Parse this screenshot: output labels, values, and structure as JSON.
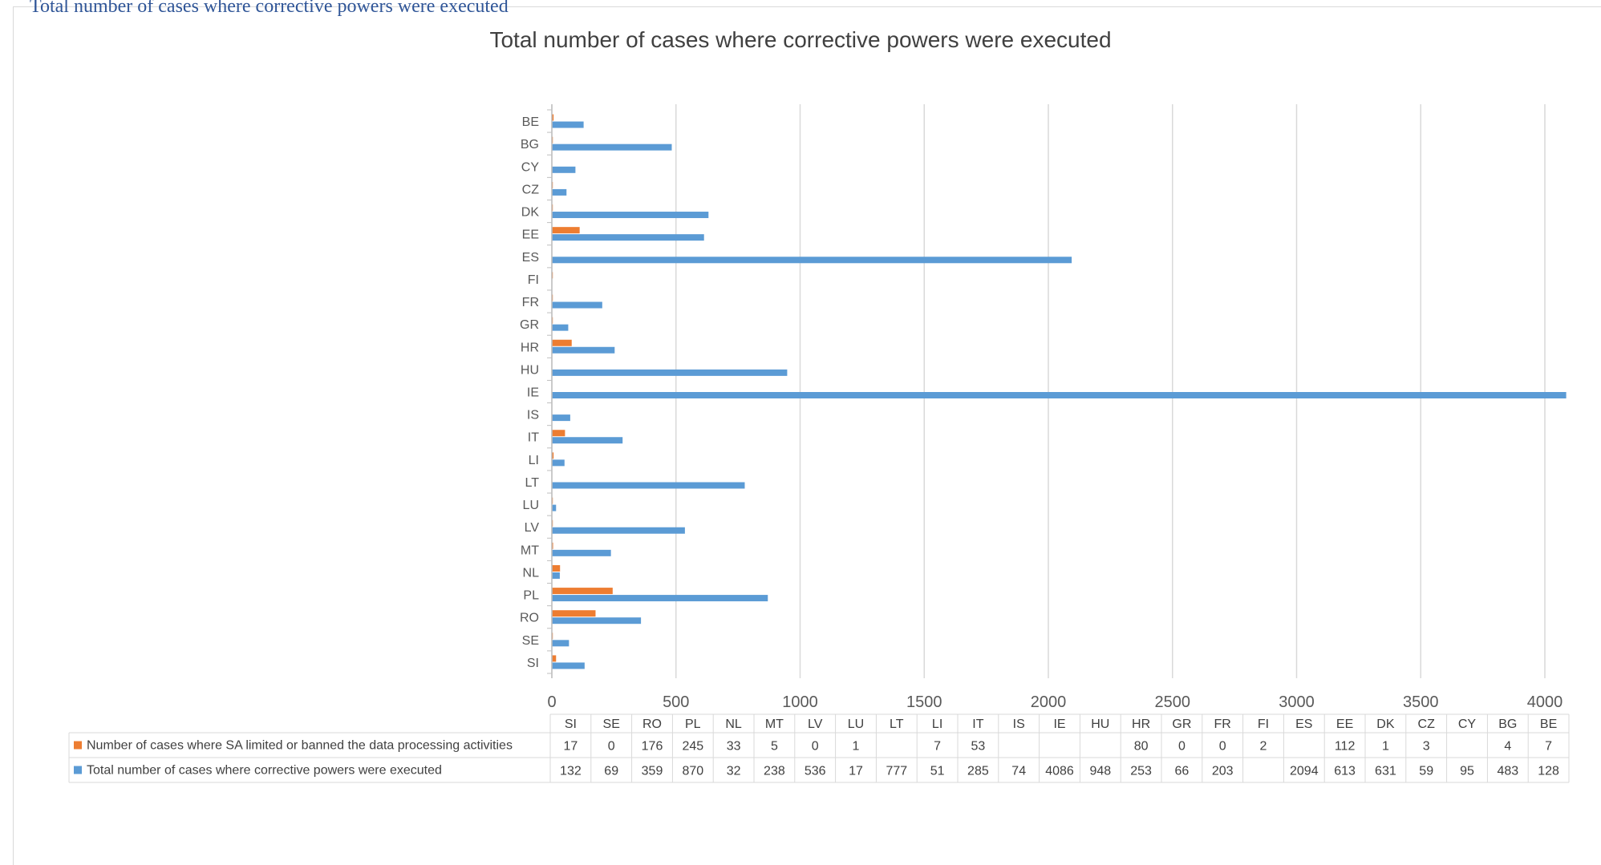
{
  "document": {
    "top_caption": "Total number of cases where corrective powers were executed"
  },
  "chart_data": {
    "type": "bar",
    "orientation": "horizontal",
    "title": "Total number of cases where corrective powers were executed",
    "categories": [
      "BE",
      "BG",
      "CY",
      "CZ",
      "DK",
      "EE",
      "ES",
      "FI",
      "FR",
      "GR",
      "HR",
      "HU",
      "IE",
      "IS",
      "IT",
      "LI",
      "LT",
      "LU",
      "LV",
      "MT",
      "NL",
      "PL",
      "RO",
      "SE",
      "SI"
    ],
    "table_categories": [
      "SI",
      "SE",
      "RO",
      "PL",
      "NL",
      "MT",
      "LV",
      "LU",
      "LT",
      "LI",
      "IT",
      "IS",
      "IE",
      "HU",
      "HR",
      "GR",
      "FR",
      "FI",
      "ES",
      "EE",
      "DK",
      "CZ",
      "CY",
      "BG",
      "BE"
    ],
    "series": [
      {
        "name": "Number of cases where SA limited or banned the data processing activities",
        "color": "#ed7d31",
        "values": [
          7,
          4,
          null,
          3,
          1,
          112,
          null,
          2,
          0,
          0,
          80,
          null,
          null,
          null,
          53,
          7,
          null,
          1,
          0,
          5,
          33,
          245,
          176,
          0,
          17
        ]
      },
      {
        "name": "Total number of cases where corrective powers were executed",
        "color": "#5b9bd5",
        "values": [
          128,
          483,
          95,
          59,
          631,
          613,
          2094,
          null,
          203,
          66,
          253,
          948,
          4086,
          74,
          285,
          51,
          777,
          17,
          536,
          238,
          32,
          870,
          359,
          69,
          132
        ]
      }
    ],
    "xlim": [
      0,
      4000
    ],
    "xticks": [
      0,
      500,
      1000,
      1500,
      2000,
      2500,
      3000,
      3500,
      4000
    ],
    "grid": true,
    "legend": "table-below"
  }
}
